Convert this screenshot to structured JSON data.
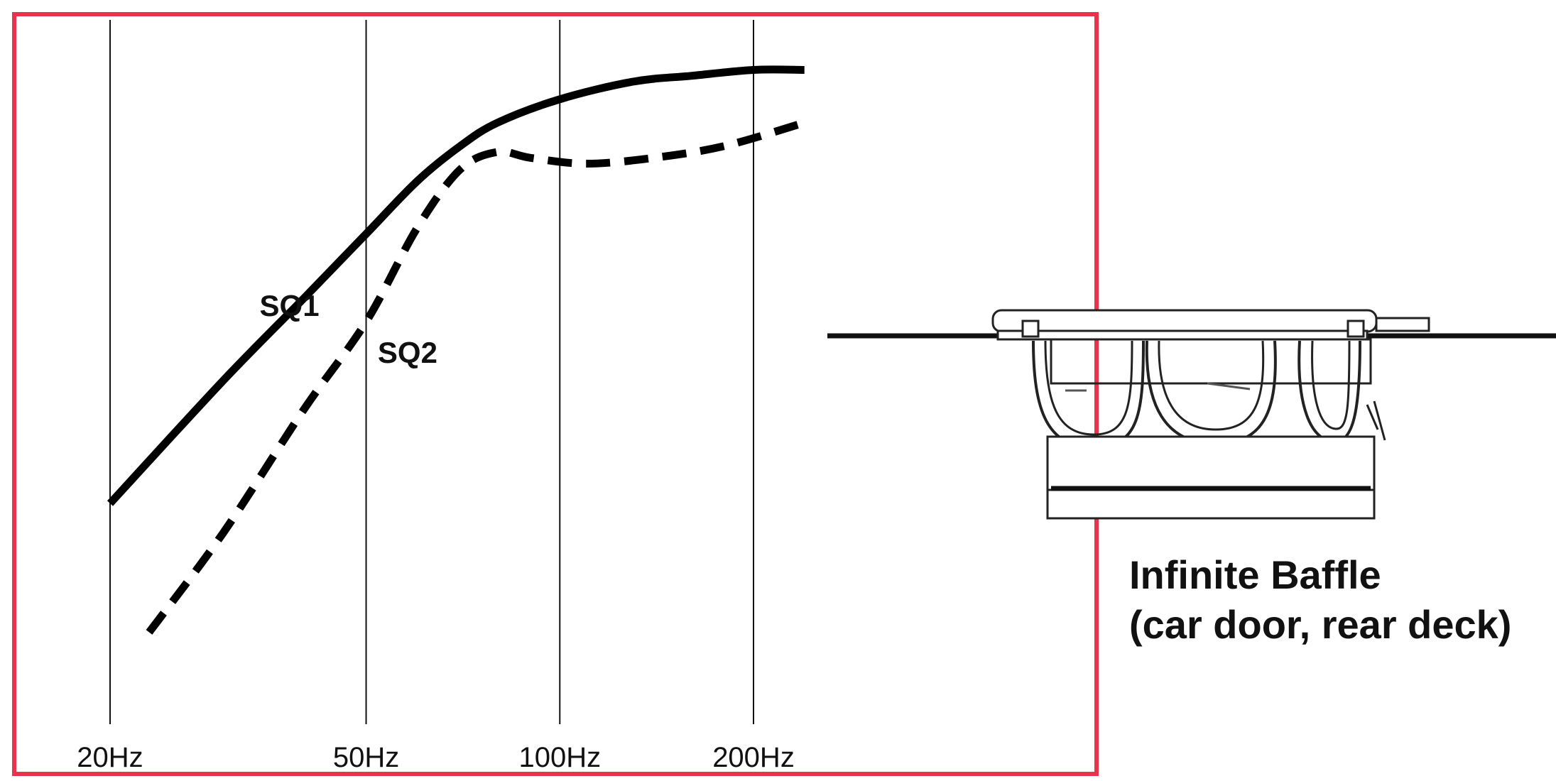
{
  "chart_data": {
    "type": "line",
    "title": "",
    "xlabel": "",
    "ylabel": "",
    "x_scale": "log",
    "x_ticks": [
      {
        "value": 20,
        "label": "20Hz"
      },
      {
        "value": 50,
        "label": "50Hz"
      },
      {
        "value": 100,
        "label": "100Hz"
      },
      {
        "value": 200,
        "label": "200Hz"
      }
    ],
    "xlim": [
      17,
      245
    ],
    "ylim": [
      0,
      1
    ],
    "grid": "vertical lines at ticks",
    "series": [
      {
        "name": "SQ1",
        "style": "solid",
        "color": "#000000",
        "points": [
          [
            20,
            0.28
          ],
          [
            30,
            0.49
          ],
          [
            40,
            0.63
          ],
          [
            50,
            0.74
          ],
          [
            60,
            0.83
          ],
          [
            70,
            0.89
          ],
          [
            80,
            0.93
          ],
          [
            100,
            0.97
          ],
          [
            130,
            1.0
          ],
          [
            160,
            1.01
          ],
          [
            200,
            1.02
          ],
          [
            240,
            1.02
          ]
        ]
      },
      {
        "name": "SQ2",
        "style": "dashed",
        "color": "#000000",
        "points": [
          [
            23,
            0.06
          ],
          [
            30,
            0.23
          ],
          [
            40,
            0.44
          ],
          [
            50,
            0.59
          ],
          [
            60,
            0.75
          ],
          [
            70,
            0.85
          ],
          [
            80,
            0.88
          ],
          [
            90,
            0.87
          ],
          [
            110,
            0.86
          ],
          [
            140,
            0.87
          ],
          [
            180,
            0.89
          ],
          [
            240,
            0.93
          ]
        ]
      }
    ],
    "annotations": {
      "caption_lines": [
        "Infinite Baffle",
        "(car door, rear deck)"
      ]
    },
    "frame_color": "#e8334a"
  }
}
